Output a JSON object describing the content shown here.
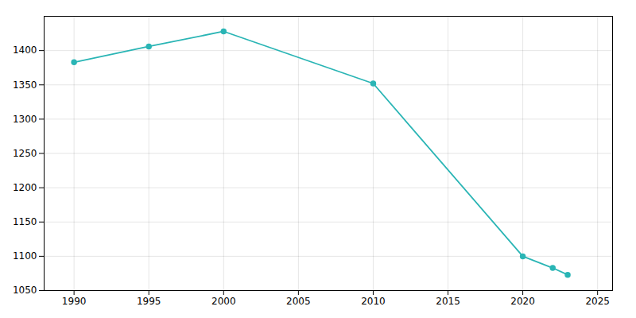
{
  "chart_data": {
    "type": "line",
    "x": [
      1990,
      1995,
      2000,
      2010,
      2020,
      2022,
      2023
    ],
    "values": [
      1383,
      1406,
      1428,
      1352,
      1100,
      1083,
      1073
    ],
    "color": "#2ab5b5",
    "marker": "circle",
    "xlim": [
      1988,
      2026
    ],
    "ylim": [
      1050,
      1450
    ],
    "xticks": [
      1990,
      1995,
      2000,
      2005,
      2010,
      2015,
      2020,
      2025
    ],
    "yticks": [
      1050,
      1100,
      1150,
      1200,
      1250,
      1300,
      1350,
      1400
    ],
    "grid": true
  }
}
